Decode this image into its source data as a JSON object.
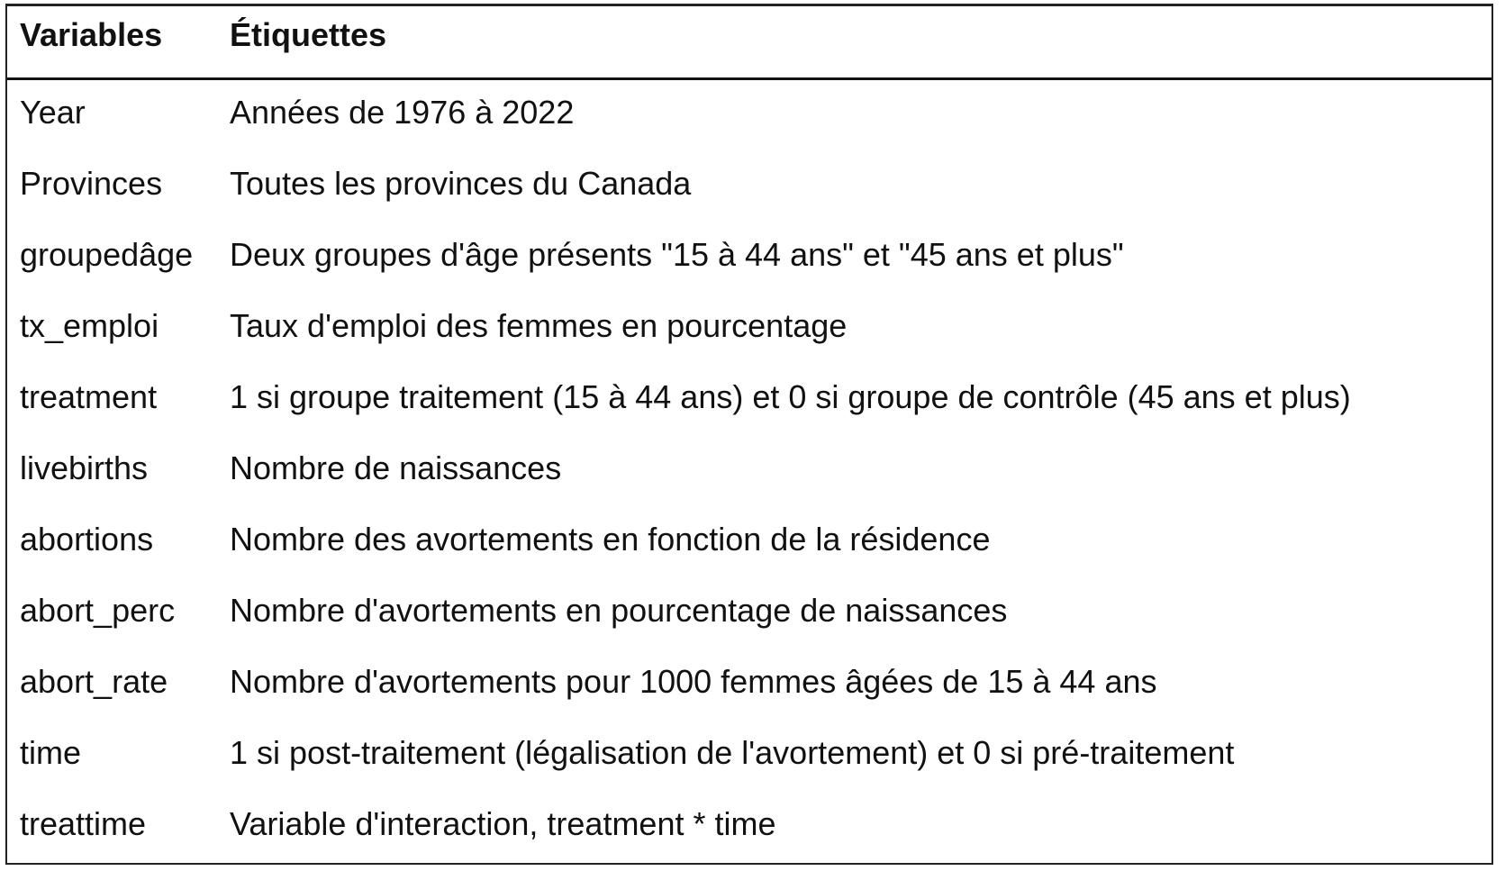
{
  "table": {
    "headers": {
      "variable": "Variables",
      "label": "Étiquettes"
    },
    "rows": [
      {
        "variable": "Year",
        "label": "Années de 1976 à 2022"
      },
      {
        "variable": "Provinces",
        "label": "Toutes les provinces du Canada"
      },
      {
        "variable": "groupedâge",
        "label": "Deux groupes d'âge présents \"15 à 44 ans\" et \"45 ans et plus\""
      },
      {
        "variable": "tx_emploi",
        "label": "Taux d'emploi des femmes en pourcentage"
      },
      {
        "variable": "treatment",
        "label": "1 si groupe traitement (15 à 44 ans) et 0 si groupe de contrôle (45 ans et plus)"
      },
      {
        "variable": "livebirths",
        "label": "Nombre de naissances"
      },
      {
        "variable": "abortions",
        "label": "Nombre des avortements en fonction de la résidence"
      },
      {
        "variable": "abort_perc",
        "label": "Nombre d'avortements en pourcentage de naissances"
      },
      {
        "variable": "abort_rate",
        "label": "Nombre d'avortements pour 1000 femmes âgées de 15 à 44 ans"
      },
      {
        "variable": "time",
        "label": "1 si post-traitement (légalisation de l'avortement) et 0 si pré-traitement"
      },
      {
        "variable": "treattime",
        "label": "Variable d'interaction, treatment * time"
      }
    ]
  }
}
